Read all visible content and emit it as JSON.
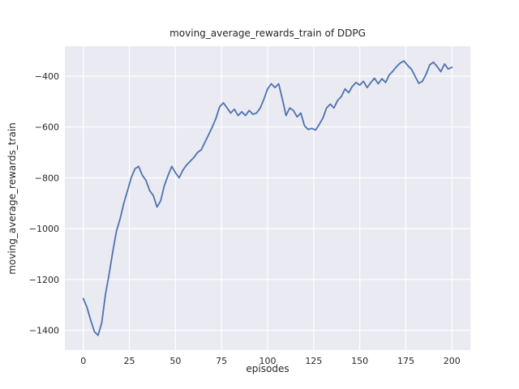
{
  "chart_data": {
    "type": "line",
    "title": "moving_average_rewards_train of DDPG",
    "xlabel": "episodes",
    "ylabel": "moving_average_rewards_train",
    "xlim": [
      -10,
      210
    ],
    "ylim": [
      -1478,
      -282
    ],
    "xticks": [
      0,
      25,
      50,
      75,
      100,
      125,
      150,
      175,
      200
    ],
    "xtick_labels": [
      "0",
      "25",
      "50",
      "75",
      "100",
      "125",
      "150",
      "175",
      "200"
    ],
    "yticks": [
      -1400,
      -1200,
      -1000,
      -800,
      -600,
      -400
    ],
    "ytick_labels": [
      "−1400",
      "−1200",
      "−1000",
      "−800",
      "−600",
      "−400"
    ],
    "grid": true,
    "legend_position": "none",
    "style": {
      "line_color": "#4c72b0",
      "plot_background": "#eaeaf2",
      "grid_color": "#ffffff",
      "figure_background": "#ffffff",
      "text_color": "#262626",
      "tick_font_size": 11,
      "line_width": 1.8
    },
    "series": [
      {
        "name": "moving_average_rewards_train",
        "x": [
          0,
          2,
          4,
          6,
          8,
          10,
          12,
          14,
          16,
          18,
          20,
          22,
          24,
          26,
          28,
          30,
          32,
          34,
          36,
          38,
          40,
          42,
          44,
          46,
          48,
          50,
          52,
          54,
          56,
          58,
          60,
          62,
          64,
          66,
          68,
          70,
          72,
          74,
          76,
          78,
          80,
          82,
          84,
          86,
          88,
          90,
          92,
          94,
          96,
          98,
          100,
          102,
          104,
          106,
          108,
          110,
          112,
          114,
          116,
          118,
          120,
          122,
          124,
          126,
          128,
          130,
          132,
          134,
          136,
          138,
          140,
          142,
          144,
          146,
          148,
          150,
          152,
          154,
          156,
          158,
          160,
          162,
          164,
          166,
          168,
          170,
          172,
          174,
          176,
          178,
          180,
          182,
          184,
          186,
          188,
          190,
          192,
          194,
          196,
          198,
          200
        ],
        "y": [
          -1275,
          -1310,
          -1360,
          -1405,
          -1420,
          -1370,
          -1260,
          -1180,
          -1090,
          -1010,
          -960,
          -900,
          -850,
          -800,
          -765,
          -755,
          -790,
          -810,
          -850,
          -870,
          -915,
          -890,
          -830,
          -790,
          -755,
          -780,
          -800,
          -770,
          -750,
          -735,
          -720,
          -700,
          -690,
          -660,
          -630,
          -600,
          -565,
          -520,
          -505,
          -525,
          -545,
          -530,
          -555,
          -540,
          -555,
          -535,
          -550,
          -545,
          -525,
          -490,
          -450,
          -430,
          -445,
          -430,
          -490,
          -555,
          -525,
          -535,
          -560,
          -545,
          -595,
          -610,
          -605,
          -612,
          -590,
          -565,
          -525,
          -510,
          -525,
          -495,
          -480,
          -450,
          -465,
          -440,
          -425,
          -435,
          -420,
          -445,
          -425,
          -408,
          -430,
          -410,
          -425,
          -395,
          -380,
          -362,
          -348,
          -340,
          -358,
          -372,
          -400,
          -428,
          -420,
          -392,
          -355,
          -345,
          -362,
          -382,
          -352,
          -372,
          -365
        ]
      }
    ]
  }
}
